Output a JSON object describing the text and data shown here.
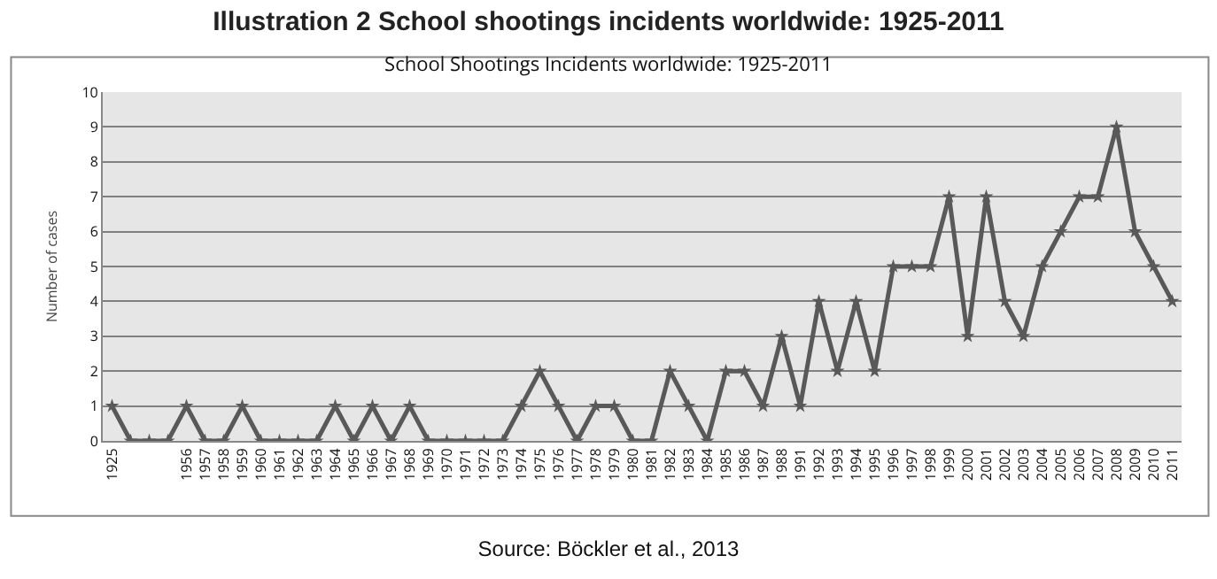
{
  "chart_data": {
    "type": "line",
    "title": "Illustration 2 School shootings incidents worldwide: 1925-2011",
    "subtitle": "School Shootings Incidents worldwide: 1925-2011",
    "ylabel": "Number of cases",
    "categories": [
      "1925",
      null,
      null,
      null,
      "1956",
      "1957",
      "1958",
      "1959",
      "1960",
      "1961",
      "1962",
      "1963",
      "1964",
      "1965",
      "1966",
      "1967",
      "1968",
      "1969",
      "1970",
      "1971",
      "1972",
      "1973",
      "1974",
      "1975",
      "1976",
      "1977",
      "1978",
      "1979",
      "1980",
      "1981",
      "1982",
      "1983",
      "1984",
      "1985",
      "1986",
      "1987",
      "1988",
      "1991",
      "1992",
      "1993",
      "1994",
      "1995",
      "1996",
      "1997",
      "1998",
      "1999",
      "2000",
      "2001",
      "2002",
      "2003",
      "2004",
      "2005",
      "2006",
      "2007",
      "2008",
      "2009",
      "2010",
      "2011"
    ],
    "series": [
      {
        "color": "#595959",
        "values": [
          1,
          0,
          0,
          0,
          1,
          0,
          0,
          1,
          0,
          0,
          0,
          0,
          1,
          0,
          1,
          0,
          1,
          0,
          0,
          0,
          0,
          0,
          1,
          2,
          1,
          0,
          1,
          1,
          0,
          0,
          2,
          1,
          0,
          2,
          2,
          1,
          3,
          1,
          4,
          2,
          4,
          2,
          5,
          5,
          5,
          7,
          3,
          7,
          4,
          3,
          5,
          6,
          7,
          7,
          9,
          6,
          5,
          4
        ]
      }
    ],
    "ylim": [
      0,
      10
    ],
    "yticks": [
      0,
      1,
      2,
      3,
      4,
      5,
      6,
      7,
      8,
      9,
      10
    ],
    "grid": "y",
    "marker": "star",
    "line_style": "solid",
    "annotations": [
      "Source: Böckler et al., 2013"
    ]
  }
}
